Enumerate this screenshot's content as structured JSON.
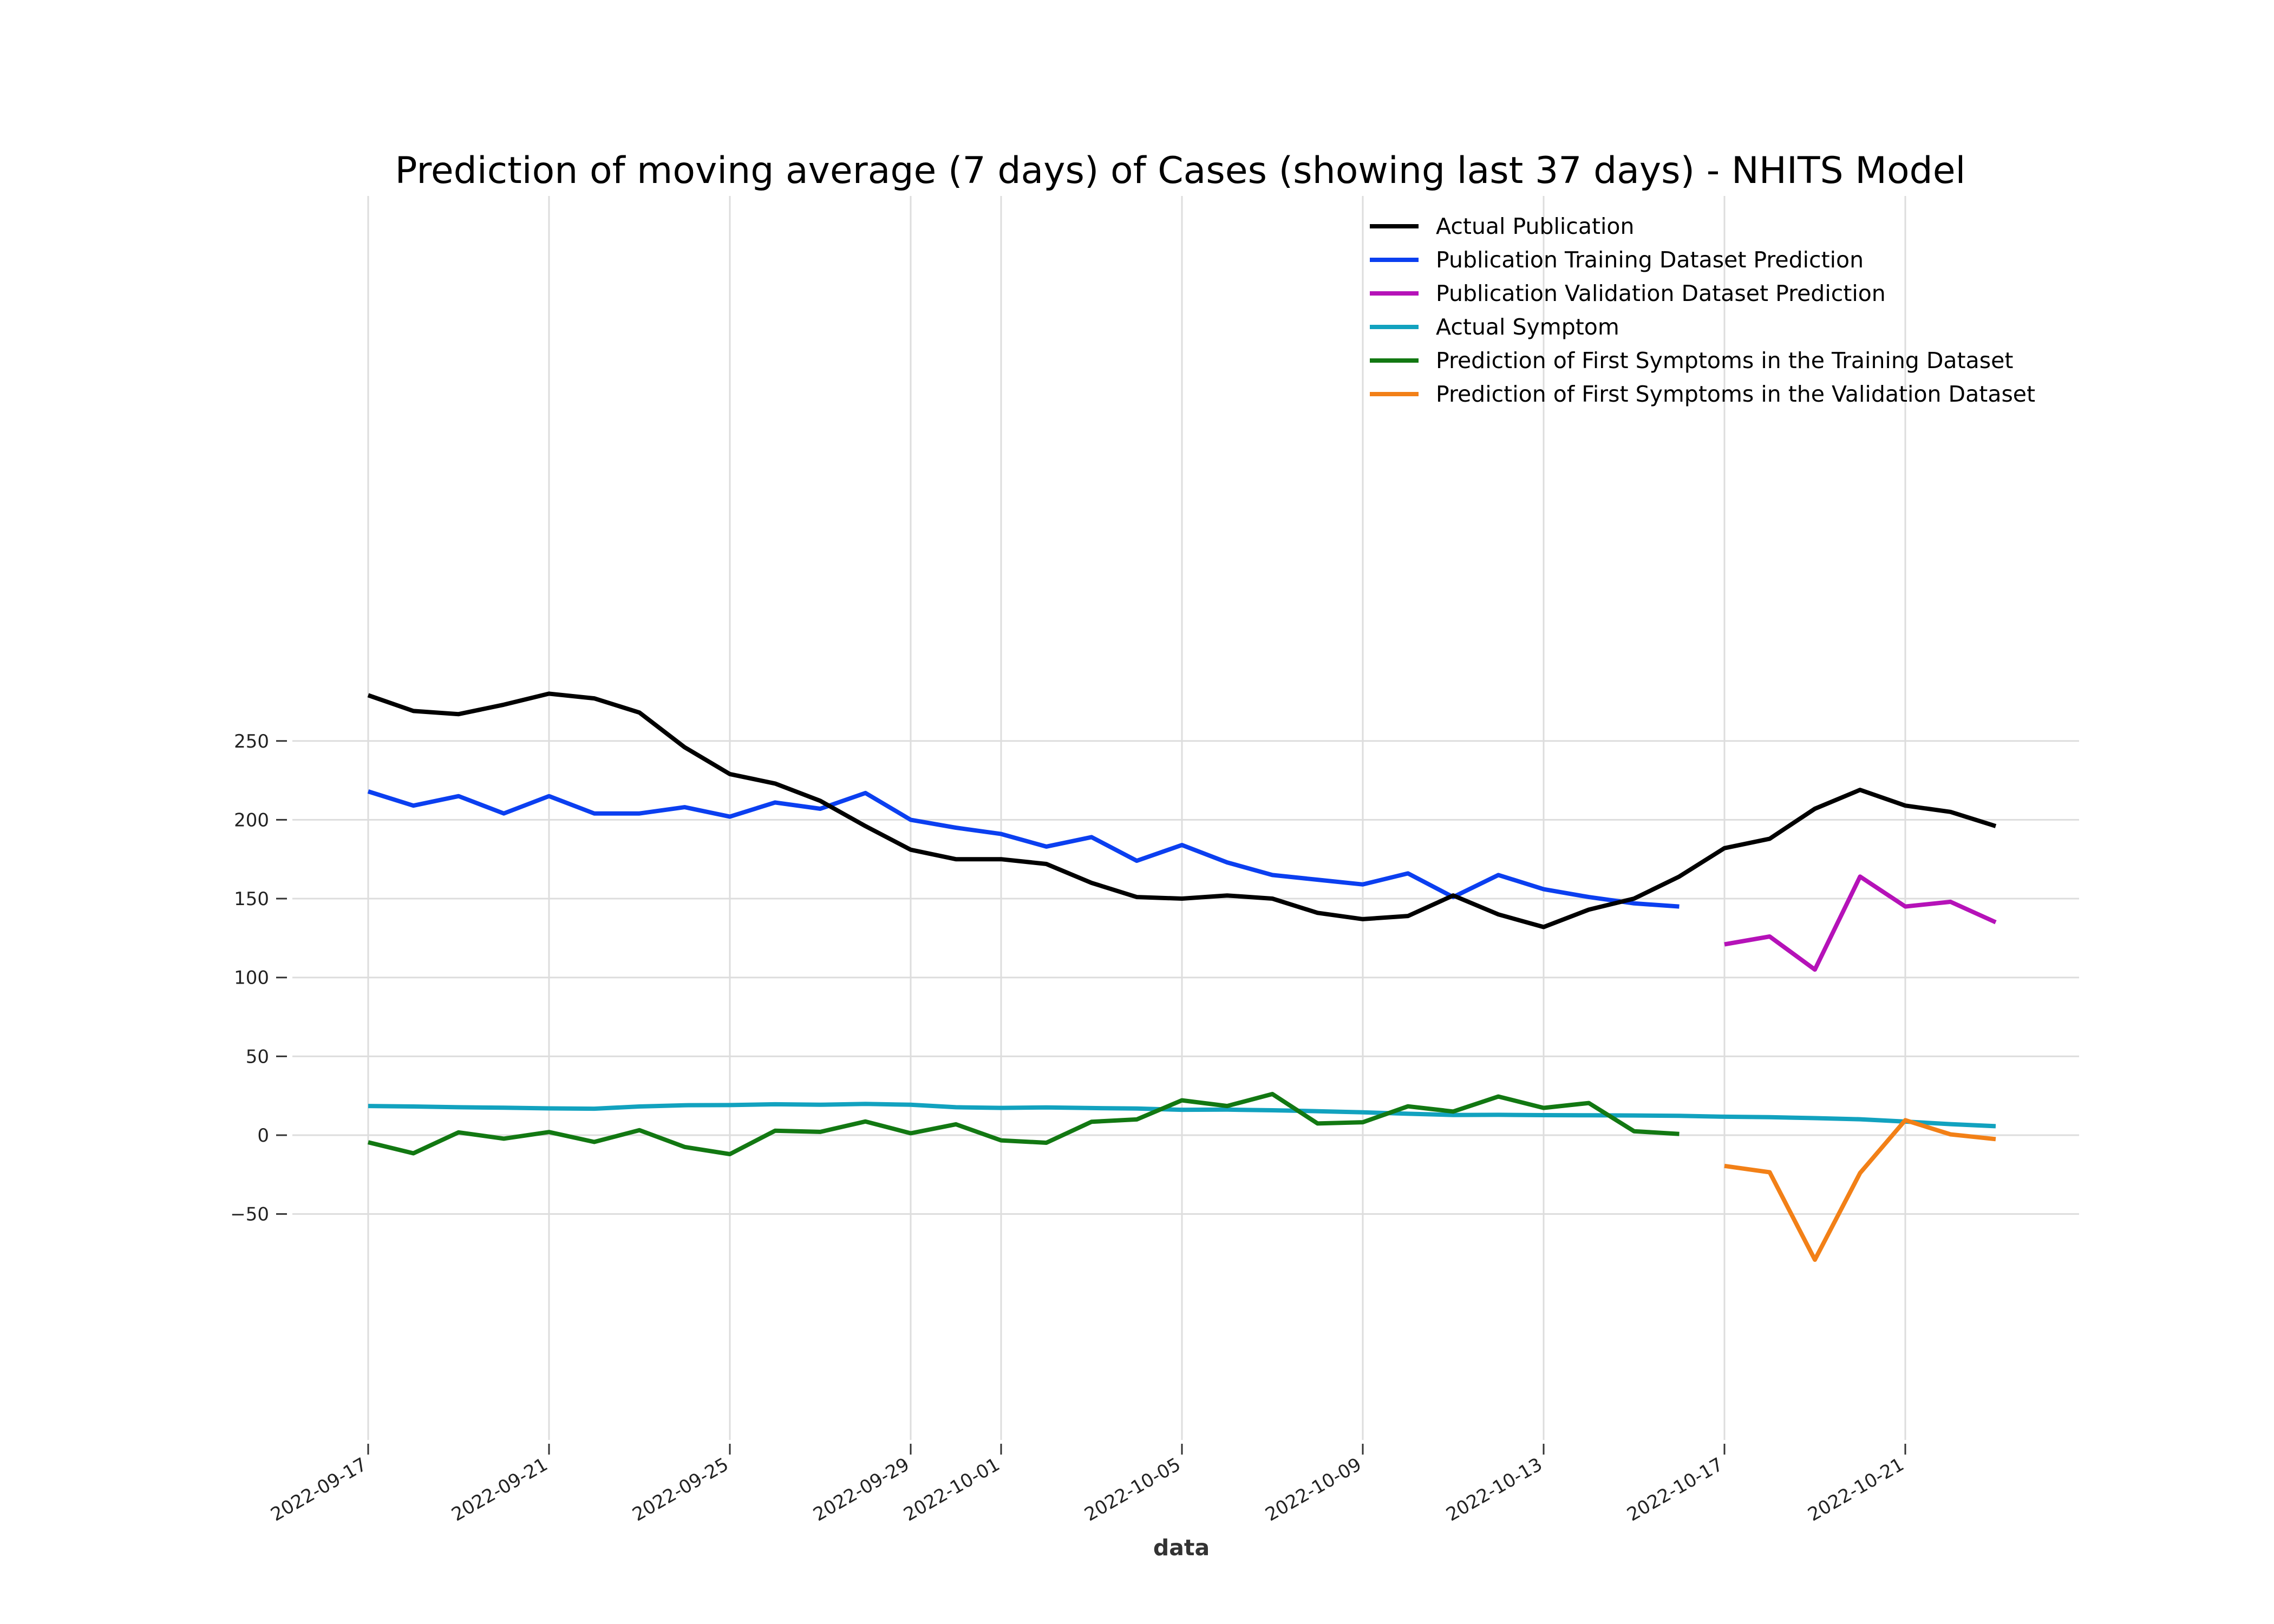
{
  "chart_data": {
    "type": "line",
    "title": "Prediction of moving average (7 days) of Cases (showing last 37 days) - NHITS Model",
    "xlabel": "data",
    "ylabel": "",
    "x_start": "2022-09-17",
    "x_end": "2022-10-24",
    "xlim": [
      "2022-09-17",
      "2022-10-24"
    ],
    "ylim": [
      -95,
      300
    ],
    "x_ticks": [
      "2022-09-17",
      "2022-09-21",
      "2022-09-25",
      "2022-09-29",
      "2022-10-01",
      "2022-10-05",
      "2022-10-09",
      "2022-10-13",
      "2022-10-17",
      "2022-10-21"
    ],
    "y_ticks": [
      -50,
      0,
      50,
      100,
      150,
      200,
      250
    ],
    "y_tick_labels": [
      "−50",
      "0",
      "50",
      "100",
      "150",
      "200",
      "250"
    ],
    "grid": true,
    "legend_position": "top-right",
    "series": [
      {
        "name": "Actual Publication",
        "color": "#000000",
        "x": [
          "2022-09-17",
          "2022-09-18",
          "2022-09-19",
          "2022-09-20",
          "2022-09-21",
          "2022-09-22",
          "2022-09-23",
          "2022-09-24",
          "2022-09-25",
          "2022-09-26",
          "2022-09-27",
          "2022-09-28",
          "2022-09-29",
          "2022-09-30",
          "2022-10-01",
          "2022-10-02",
          "2022-10-03",
          "2022-10-04",
          "2022-10-05",
          "2022-10-06",
          "2022-10-07",
          "2022-10-08",
          "2022-10-09",
          "2022-10-10",
          "2022-10-11",
          "2022-10-12",
          "2022-10-13",
          "2022-10-14",
          "2022-10-15",
          "2022-10-16",
          "2022-10-17",
          "2022-10-18",
          "2022-10-19",
          "2022-10-20",
          "2022-10-21",
          "2022-10-22",
          "2022-10-23"
        ],
        "values": [
          279,
          269,
          267,
          273,
          280,
          277,
          268,
          246,
          229,
          223,
          212,
          196,
          181,
          175,
          175,
          172,
          160,
          151,
          150,
          152,
          150,
          141,
          137,
          139,
          152,
          140,
          132,
          143,
          150,
          164,
          182,
          188,
          207,
          219,
          209,
          205,
          196
        ]
      },
      {
        "name": "Publication Training Dataset Prediction",
        "color": "#0b3ff0",
        "x": [
          "2022-09-17",
          "2022-09-18",
          "2022-09-19",
          "2022-09-20",
          "2022-09-21",
          "2022-09-22",
          "2022-09-23",
          "2022-09-24",
          "2022-09-25",
          "2022-09-26",
          "2022-09-27",
          "2022-09-28",
          "2022-09-29",
          "2022-09-30",
          "2022-10-01",
          "2022-10-02",
          "2022-10-03",
          "2022-10-04",
          "2022-10-05",
          "2022-10-06",
          "2022-10-07",
          "2022-10-08",
          "2022-10-09",
          "2022-10-10",
          "2022-10-11",
          "2022-10-12",
          "2022-10-13",
          "2022-10-14",
          "2022-10-15",
          "2022-10-16"
        ],
        "values": [
          218,
          209,
          215,
          204,
          215,
          204,
          204,
          208,
          202,
          211,
          207,
          217,
          200,
          195,
          191,
          183,
          189,
          174,
          184,
          173,
          165,
          162,
          159,
          166,
          151,
          165,
          156,
          151,
          147,
          145
        ]
      },
      {
        "name": "Publication Validation Dataset Prediction",
        "color": "#b512b8",
        "x": [
          "2022-10-17",
          "2022-10-18",
          "2022-10-19",
          "2022-10-20",
          "2022-10-21",
          "2022-10-22",
          "2022-10-23"
        ],
        "values": [
          121,
          126,
          105,
          164,
          145,
          148,
          135
        ]
      },
      {
        "name": "Actual Symptom",
        "color": "#12a2bf",
        "x": [
          "2022-09-17",
          "2022-09-18",
          "2022-09-19",
          "2022-09-20",
          "2022-09-21",
          "2022-09-22",
          "2022-09-23",
          "2022-09-24",
          "2022-09-25",
          "2022-09-26",
          "2022-09-27",
          "2022-09-28",
          "2022-09-29",
          "2022-09-30",
          "2022-10-01",
          "2022-10-02",
          "2022-10-03",
          "2022-10-04",
          "2022-10-05",
          "2022-10-06",
          "2022-10-07",
          "2022-10-08",
          "2022-10-09",
          "2022-10-10",
          "2022-10-11",
          "2022-10-12",
          "2022-10-13",
          "2022-10-14",
          "2022-10-15",
          "2022-10-16",
          "2022-10-17",
          "2022-10-18",
          "2022-10-19",
          "2022-10-20",
          "2022-10-21",
          "2022-10-22",
          "2022-10-23"
        ],
        "values": [
          18.5,
          18.2,
          17.7,
          17.4,
          17.0,
          16.8,
          18.2,
          19.0,
          19.1,
          19.6,
          19.3,
          19.8,
          19.3,
          17.7,
          17.3,
          17.6,
          17.2,
          16.9,
          16.1,
          16.2,
          15.8,
          15.2,
          14.5,
          13.6,
          12.8,
          12.9,
          12.7,
          12.6,
          12.5,
          12.3,
          11.7,
          11.4,
          10.8,
          10.1,
          8.6,
          7.0,
          5.7
        ]
      },
      {
        "name": "Prediction of First Symptoms in the Training Dataset",
        "color": "#127812",
        "x": [
          "2022-09-17",
          "2022-09-18",
          "2022-09-19",
          "2022-09-20",
          "2022-09-21",
          "2022-09-22",
          "2022-09-23",
          "2022-09-24",
          "2022-09-25",
          "2022-09-26",
          "2022-09-27",
          "2022-09-28",
          "2022-09-29",
          "2022-09-30",
          "2022-10-01",
          "2022-10-02",
          "2022-10-03",
          "2022-10-04",
          "2022-10-05",
          "2022-10-06",
          "2022-10-07",
          "2022-10-08",
          "2022-10-09",
          "2022-10-10",
          "2022-10-11",
          "2022-10-12",
          "2022-10-13",
          "2022-10-14",
          "2022-10-15",
          "2022-10-16"
        ],
        "values": [
          -4.5,
          -11.5,
          1.8,
          -2.2,
          2.0,
          -4.3,
          3.2,
          -7.5,
          -12.0,
          2.8,
          2.1,
          8.7,
          1.2,
          6.9,
          -3.3,
          -4.8,
          8.5,
          10.0,
          22.1,
          18.5,
          26.1,
          7.4,
          8.2,
          18.3,
          15.0,
          24.5,
          17.3,
          20.4,
          2.5,
          0.8
        ]
      },
      {
        "name": "Prediction of First Symptoms in the Validation Dataset",
        "color": "#f28017",
        "x": [
          "2022-10-17",
          "2022-10-18",
          "2022-10-19",
          "2022-10-20",
          "2022-10-21",
          "2022-10-22",
          "2022-10-23"
        ],
        "values": [
          -19.5,
          -23.5,
          -79.0,
          -24.0,
          9.5,
          0.5,
          -2.5
        ]
      }
    ]
  }
}
